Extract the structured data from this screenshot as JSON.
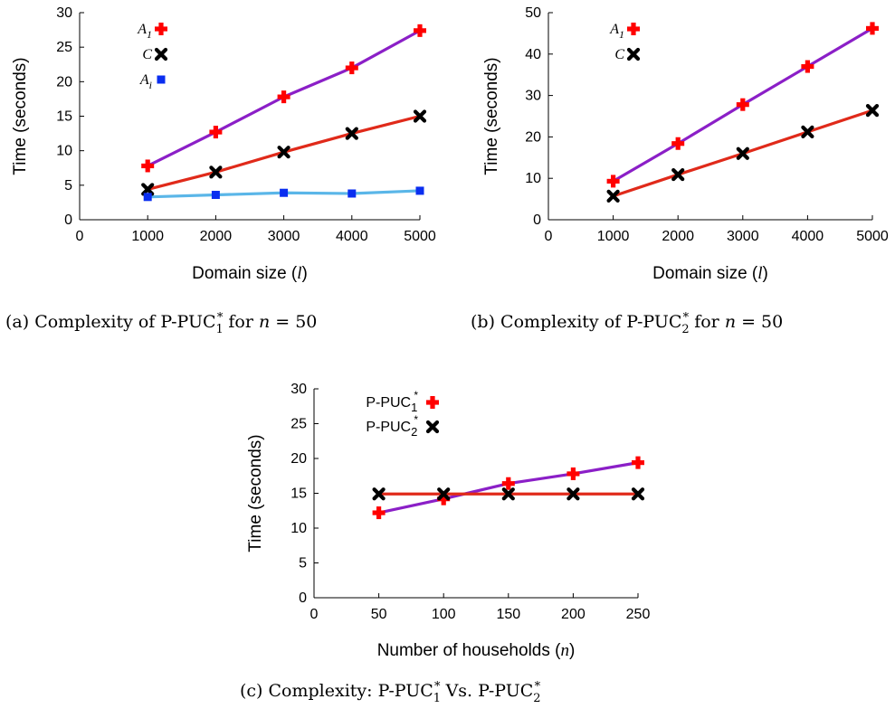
{
  "figure": {
    "captions": {
      "a": "(a) Complexity of P-PUC",
      "a_sub": "1",
      "a_sup": "*",
      "a_tail": " for ",
      "a_n": "n",
      "a_eq": " = 50",
      "b": "(b) Complexity of P-PUC",
      "b_sub": "2",
      "b_sup": "*",
      "b_tail": " for ",
      "b_n": "n",
      "b_eq": " = 50",
      "c": "(c) Complexity: P-PUC",
      "c_sub1": "1",
      "c_sup1": "*",
      "c_mid": " Vs. P-PUC",
      "c_sub2": "2",
      "c_sup2": "*"
    }
  },
  "chart_data": [
    {
      "id": "a",
      "type": "line",
      "xlabel": "Domain size",
      "xlabel_var": "l",
      "ylabel": "Time (seconds)",
      "xlim": [
        0,
        5000
      ],
      "ylim": [
        0,
        30
      ],
      "xticks": [
        0,
        1000,
        2000,
        3000,
        4000,
        5000
      ],
      "xtick_labels": [
        "0",
        "1000",
        "2000",
        "3000",
        "4000",
        "5000"
      ],
      "yticks": [
        0,
        5,
        10,
        15,
        20,
        25,
        30
      ],
      "x": [
        1000,
        2000,
        3000,
        4000,
        5000
      ],
      "series": [
        {
          "name": "A",
          "name_sub": "1",
          "values": [
            7.8,
            12.7,
            17.8,
            22.0,
            27.4
          ],
          "marker": "plus",
          "marker_color": "#ff0000",
          "line_color": "#8b1fc7"
        },
        {
          "name": "C",
          "name_sub": "",
          "values": [
            4.4,
            6.9,
            9.8,
            12.5,
            15.0
          ],
          "marker": "cross",
          "marker_color": "#000000",
          "line_color": "#e02a1a"
        },
        {
          "name": "A",
          "name_sub": "i",
          "values": [
            3.3,
            3.6,
            3.9,
            3.8,
            4.2
          ],
          "marker": "square",
          "marker_color": "#0a2ef0",
          "line_color": "#5ab6e8"
        }
      ],
      "grid": false,
      "legend": "top-left"
    },
    {
      "id": "b",
      "type": "line",
      "xlabel": "Domain size",
      "xlabel_var": "l",
      "ylabel": "Time (seconds)",
      "xlim": [
        0,
        5000
      ],
      "ylim": [
        0,
        50
      ],
      "xticks": [
        0,
        1000,
        2000,
        3000,
        4000,
        5000
      ],
      "xtick_labels": [
        "0",
        "1000",
        "2000",
        "3000",
        "4000",
        "5000"
      ],
      "yticks": [
        0,
        10,
        20,
        30,
        40,
        50
      ],
      "x": [
        1000,
        2000,
        3000,
        4000,
        5000
      ],
      "series": [
        {
          "name": "A",
          "name_sub": "1",
          "values": [
            9.3,
            18.4,
            27.8,
            37.0,
            46.2
          ],
          "marker": "plus",
          "marker_color": "#ff0000",
          "line_color": "#8b1fc7"
        },
        {
          "name": "C",
          "name_sub": "",
          "values": [
            5.7,
            10.9,
            16.0,
            21.2,
            26.4
          ],
          "marker": "cross",
          "marker_color": "#000000",
          "line_color": "#e02a1a"
        }
      ],
      "grid": false,
      "legend": "top-left"
    },
    {
      "id": "c",
      "type": "line",
      "xlabel": "Number of households",
      "xlabel_var": "n",
      "ylabel": "Time (seconds)",
      "xlim": [
        0,
        250
      ],
      "ylim": [
        0,
        30
      ],
      "xticks": [
        0,
        50,
        100,
        150,
        200,
        250
      ],
      "xtick_labels": [
        "0",
        "50",
        "100",
        "150",
        "200",
        "250"
      ],
      "yticks": [
        0,
        5,
        10,
        15,
        20,
        25,
        30
      ],
      "x": [
        50,
        100,
        150,
        200,
        250
      ],
      "series": [
        {
          "name": "P-PUC",
          "name_sub": "1",
          "name_sup": "*",
          "values": [
            12.2,
            14.2,
            16.4,
            17.8,
            19.4
          ],
          "marker": "plus",
          "marker_color": "#ff0000",
          "line_color": "#8b1fc7"
        },
        {
          "name": "P-PUC",
          "name_sub": "2",
          "name_sup": "*",
          "values": [
            14.9,
            14.9,
            14.9,
            14.9,
            14.9
          ],
          "marker": "cross",
          "marker_color": "#000000",
          "line_color": "#e02a1a"
        }
      ],
      "grid": false,
      "legend": "top-left"
    }
  ]
}
